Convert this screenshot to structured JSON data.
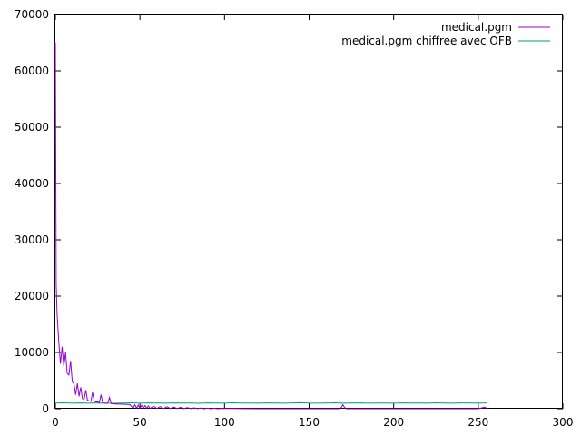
{
  "chart_data": {
    "type": "line",
    "title": "",
    "xlabel": "",
    "ylabel": "",
    "xlim": [
      0,
      300
    ],
    "ylim": [
      0,
      70000
    ],
    "xticks": [
      0,
      50,
      100,
      150,
      200,
      250,
      300
    ],
    "yticks": [
      0,
      10000,
      20000,
      30000,
      40000,
      50000,
      60000,
      70000
    ],
    "grid": false,
    "legend_position": "top-right",
    "series": [
      {
        "name": "medical.pgm",
        "color": "#9400d3",
        "x": [
          0,
          0.5,
          1,
          2,
          3,
          4,
          5,
          6,
          7,
          8,
          9,
          10,
          11,
          12,
          13,
          14,
          15,
          16,
          17,
          18,
          19,
          20,
          21,
          22,
          23,
          24,
          25,
          26,
          27,
          28,
          29,
          30,
          31,
          32,
          33,
          34,
          35,
          40,
          44,
          46,
          47,
          48,
          49,
          50,
          51,
          52,
          53,
          54,
          55,
          56,
          58,
          60,
          62,
          64,
          66,
          68,
          70,
          72,
          74,
          76,
          78,
          80,
          82,
          84,
          86,
          88,
          90,
          92,
          94,
          96,
          98,
          100,
          105,
          110,
          120,
          130,
          140,
          150,
          160,
          168,
          169,
          170,
          171,
          172,
          180,
          200,
          220,
          240,
          250,
          254,
          255
        ],
        "y": [
          65000,
          22000,
          17000,
          12000,
          8000,
          11000,
          7500,
          10000,
          6300,
          6000,
          8500,
          4800,
          4400,
          2500,
          4500,
          2200,
          3800,
          1800,
          1700,
          3300,
          1500,
          1400,
          1300,
          2900,
          1300,
          1200,
          1200,
          1100,
          2500,
          1000,
          1000,
          950,
          1000,
          2000,
          900,
          900,
          850,
          800,
          750,
          100,
          700,
          100,
          650,
          100,
          600,
          80,
          550,
          80,
          500,
          60,
          450,
          50,
          400,
          40,
          350,
          30,
          300,
          25,
          250,
          20,
          200,
          20,
          150,
          15,
          120,
          10,
          100,
          10,
          80,
          10,
          60,
          50,
          30,
          20,
          10,
          5,
          5,
          5,
          5,
          5,
          200,
          700,
          200,
          5,
          5,
          5,
          5,
          5,
          5,
          300,
          5
        ]
      },
      {
        "name": "medical.pgm chiffree avec OFB",
        "color": "#009e73",
        "x": [
          0,
          5,
          10,
          15,
          20,
          25,
          30,
          35,
          40,
          45,
          50,
          55,
          60,
          65,
          70,
          75,
          80,
          85,
          90,
          95,
          100,
          105,
          110,
          115,
          120,
          125,
          130,
          135,
          140,
          145,
          150,
          155,
          160,
          165,
          170,
          175,
          180,
          185,
          190,
          195,
          200,
          205,
          210,
          215,
          220,
          225,
          230,
          235,
          240,
          245,
          250,
          255
        ],
        "y": [
          1000,
          1050,
          980,
          1020,
          990,
          1030,
          1000,
          970,
          1010,
          1040,
          990,
          1020,
          1000,
          980,
          1030,
          1000,
          1010,
          970,
          1020,
          1000,
          990,
          1050,
          1000,
          1010,
          980,
          1030,
          1000,
          990,
          1020,
          1060,
          1000,
          980,
          1010,
          1040,
          990,
          1000,
          1020,
          980,
          1010,
          1000,
          990,
          1030,
          1000,
          1010,
          980,
          1040,
          1000,
          990,
          1020,
          1000,
          1010,
          1000
        ]
      }
    ]
  }
}
